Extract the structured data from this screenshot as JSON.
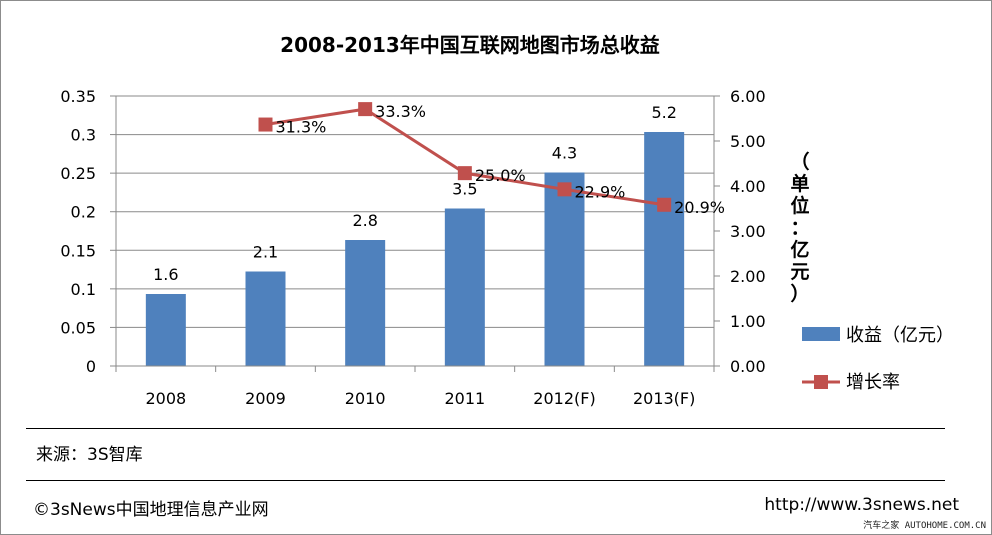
{
  "chart_data": {
    "type": "bar",
    "title": "2008-2013年中国互联网地图市场总收益",
    "categories": [
      "2008",
      "2009",
      "2010",
      "2011",
      "2012(F)",
      "2013(F)"
    ],
    "series": [
      {
        "name": "收益（亿元）",
        "type": "bar",
        "axis": "right",
        "values": [
          1.6,
          2.1,
          2.8,
          3.5,
          4.3,
          5.2
        ],
        "labels": [
          "1.6",
          "2.1",
          "2.8",
          "3.5",
          "4.3",
          "5.2"
        ],
        "color": "#4f81bd"
      },
      {
        "name": "增长率",
        "type": "line",
        "axis": "left",
        "values": [
          null,
          0.313,
          0.333,
          0.25,
          0.229,
          0.209
        ],
        "labels": [
          "",
          "31.3%",
          "33.3%",
          "25.0%",
          "22.9%",
          "20.9%"
        ],
        "color": "#c0504d"
      }
    ],
    "left_axis": {
      "ylim": [
        0,
        0.35
      ],
      "ticks": [
        "0",
        "0.05",
        "0.1",
        "0.15",
        "0.2",
        "0.25",
        "0.3",
        "0.35"
      ]
    },
    "right_axis": {
      "ylim": [
        0,
        6
      ],
      "ticks": [
        "0.00",
        "1.00",
        "2.00",
        "3.00",
        "4.00",
        "5.00",
        "6.00"
      ],
      "label_chars": [
        "（",
        "单",
        "位",
        "：",
        "亿",
        "元",
        "）"
      ]
    },
    "grid": true,
    "legend": {
      "placement": "right"
    }
  },
  "footer": {
    "source": "来源：3S智库",
    "copyright": "©3sNews中国地理信息产业网",
    "website": "http://www.3snews.net",
    "watermark": "汽车之家 AUTOHOME.COM.CN"
  }
}
